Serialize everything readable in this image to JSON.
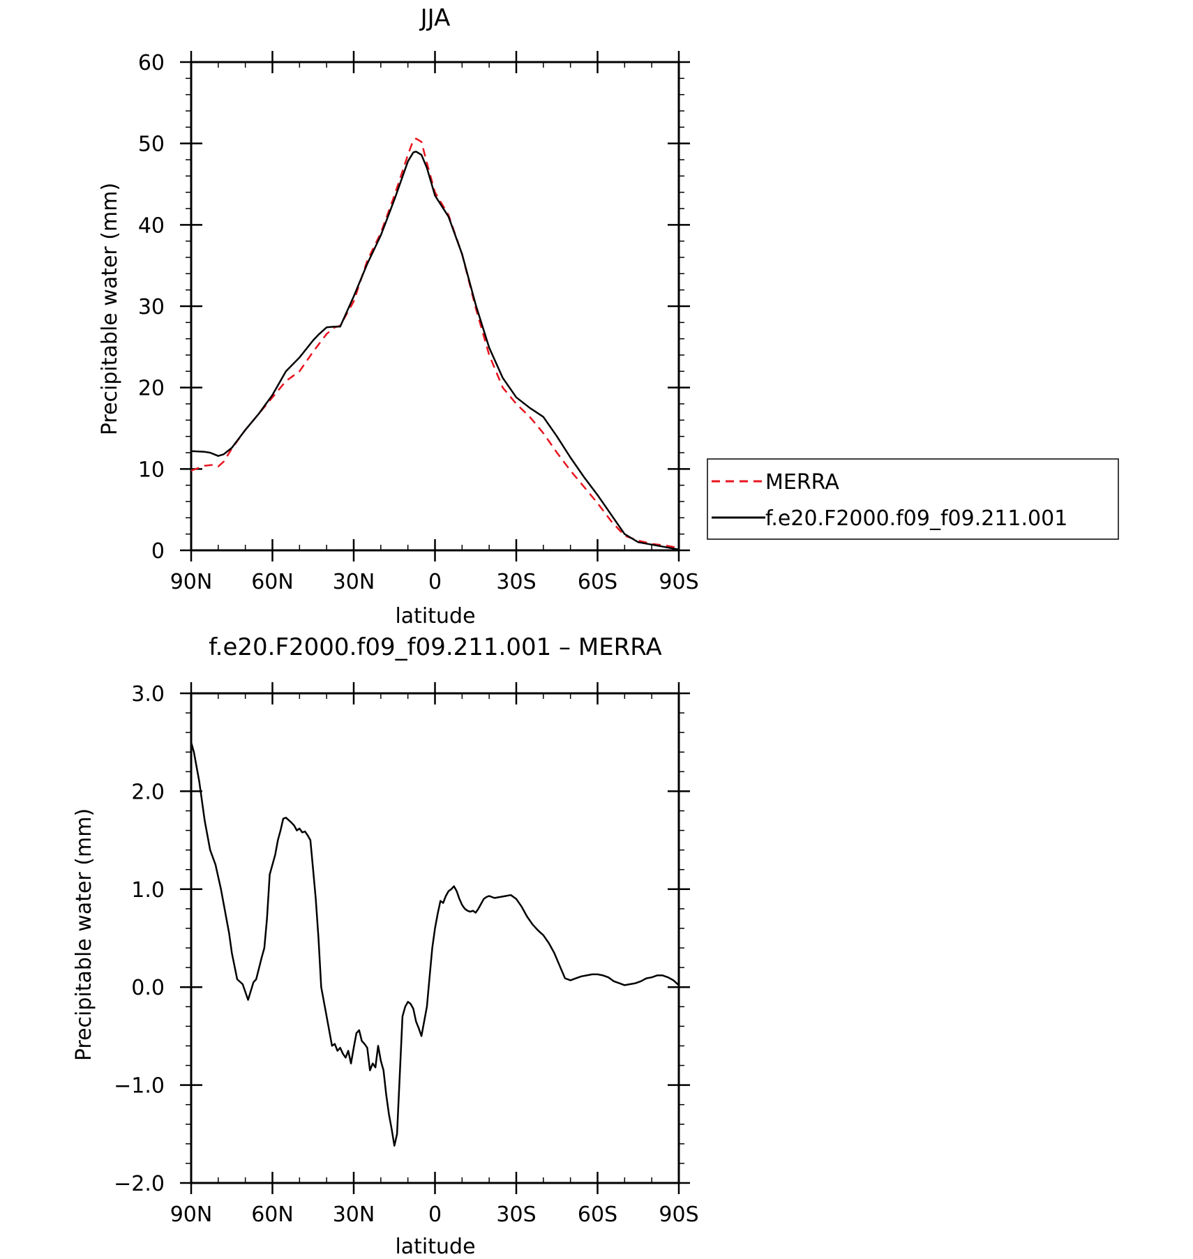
{
  "chart_data": [
    {
      "type": "line",
      "title": "JJA",
      "xlabel": "latitude",
      "ylabel": "Precipitable water (mm)",
      "xlim": [
        90,
        -90
      ],
      "ylim": [
        0,
        60
      ],
      "x_ticks": [
        {
          "value": 90,
          "label": "90N"
        },
        {
          "value": 60,
          "label": "60N"
        },
        {
          "value": 30,
          "label": "30N"
        },
        {
          "value": 0,
          "label": "0"
        },
        {
          "value": -30,
          "label": "30S"
        },
        {
          "value": -60,
          "label": "60S"
        },
        {
          "value": -90,
          "label": "90S"
        }
      ],
      "y_ticks": [
        {
          "value": 0,
          "label": "0"
        },
        {
          "value": 10,
          "label": "10"
        },
        {
          "value": 20,
          "label": "20"
        },
        {
          "value": 30,
          "label": "30"
        },
        {
          "value": 40,
          "label": "40"
        },
        {
          "value": 50,
          "label": "50"
        },
        {
          "value": 60,
          "label": "60"
        }
      ],
      "legend_position": "right",
      "series": [
        {
          "name": "MERRA",
          "color": "#e8141e",
          "dashed": true,
          "x": [
            90,
            85,
            82,
            80,
            78,
            75,
            70,
            65,
            60,
            55,
            50,
            45,
            40,
            37,
            35,
            30,
            25,
            20,
            15,
            10,
            8,
            7,
            5,
            3,
            0,
            -5,
            -10,
            -15,
            -20,
            -25,
            -30,
            -35,
            -40,
            -45,
            -50,
            -55,
            -60,
            -65,
            -70,
            -75,
            -80,
            -85,
            -90
          ],
          "y": [
            9.8,
            10.4,
            10.5,
            10.3,
            10.9,
            12.5,
            14.8,
            16.8,
            18.8,
            20.8,
            22.0,
            24.4,
            26.6,
            27.4,
            27.6,
            30.6,
            35.6,
            39.0,
            43.6,
            48.6,
            50.4,
            50.6,
            50.2,
            47.6,
            44.0,
            41.2,
            36.4,
            29.8,
            24.0,
            20.0,
            18.0,
            16.4,
            14.4,
            12.0,
            9.8,
            7.8,
            5.8,
            3.6,
            1.8,
            1.2,
            0.8,
            0.6,
            0.3
          ]
        },
        {
          "name": "f.e20.F2000.f09_f09.211.001",
          "color": "#000000",
          "dashed": false,
          "x": [
            90,
            85,
            83,
            80,
            78,
            75,
            70,
            65,
            60,
            55,
            50,
            45,
            43,
            40,
            37,
            35,
            30,
            25,
            20,
            15,
            10,
            8,
            7,
            5,
            3,
            0,
            -5,
            -10,
            -15,
            -20,
            -25,
            -30,
            -35,
            -40,
            -45,
            -50,
            -55,
            -60,
            -65,
            -70,
            -75,
            -80,
            -85,
            -90
          ],
          "y": [
            12.2,
            12.1,
            12.0,
            11.6,
            11.8,
            12.6,
            14.8,
            16.8,
            19.1,
            22.0,
            23.7,
            25.8,
            26.5,
            27.4,
            27.5,
            27.5,
            31.2,
            35.2,
            38.7,
            43.1,
            47.8,
            48.9,
            49.0,
            48.6,
            47.0,
            43.6,
            41.0,
            36.4,
            30.2,
            24.9,
            21.2,
            18.8,
            17.5,
            16.4,
            14.0,
            11.4,
            9.0,
            6.8,
            4.4,
            2.0,
            1.0,
            0.7,
            0.4,
            0.1
          ]
        }
      ]
    },
    {
      "type": "line",
      "title": "f.e20.F2000.f09_f09.211.001 – MERRA",
      "xlabel": "latitude",
      "ylabel": "Precipitable water (mm)",
      "xlim": [
        90,
        -90
      ],
      "ylim": [
        -2.0,
        3.0
      ],
      "x_ticks": [
        {
          "value": 90,
          "label": "90N"
        },
        {
          "value": 60,
          "label": "60N"
        },
        {
          "value": 30,
          "label": "30N"
        },
        {
          "value": 0,
          "label": "0"
        },
        {
          "value": -30,
          "label": "30S"
        },
        {
          "value": -60,
          "label": "60S"
        },
        {
          "value": -90,
          "label": "90S"
        }
      ],
      "y_ticks": [
        {
          "value": -2.0,
          "label": "−2.0"
        },
        {
          "value": -1.0,
          "label": "−1.0"
        },
        {
          "value": 0.0,
          "label": "0.0"
        },
        {
          "value": 1.0,
          "label": "1.0"
        },
        {
          "value": 2.0,
          "label": "2.0"
        },
        {
          "value": 3.0,
          "label": "3.0"
        }
      ],
      "series": [
        {
          "color": "#000000",
          "dashed": false,
          "x": [
            90,
            89,
            87,
            85,
            83,
            81,
            79,
            78,
            76,
            75,
            73,
            71,
            69,
            67,
            66,
            64,
            63,
            62,
            61,
            59,
            58,
            57,
            56,
            55,
            53,
            52,
            51,
            50,
            49,
            48,
            47,
            46,
            45,
            44,
            43,
            42,
            40,
            38,
            37,
            36,
            35,
            34,
            33,
            32,
            31,
            30,
            29,
            28,
            27,
            26,
            25,
            24,
            23,
            22,
            21,
            20,
            19,
            18,
            17,
            16,
            15,
            14,
            13,
            12,
            11,
            10,
            9,
            8,
            7,
            6,
            5,
            4,
            3,
            2,
            1,
            0,
            -1,
            -2,
            -3,
            -4,
            -5,
            -6,
            -7,
            -8,
            -9,
            -10,
            -11,
            -12,
            -13,
            -14,
            -15,
            -16,
            -17,
            -18,
            -19,
            -20,
            -21,
            -22,
            -24,
            -26,
            -28,
            -30,
            -32,
            -34,
            -36,
            -38,
            -40,
            -42,
            -44,
            -46,
            -48,
            -50,
            -52,
            -54,
            -56,
            -58,
            -60,
            -62,
            -64,
            -65,
            -66,
            -68,
            -70,
            -72,
            -74,
            -76,
            -78,
            -80,
            -82,
            -84,
            -86,
            -88,
            -90
          ],
          "y": [
            2.5,
            2.4,
            2.1,
            1.7,
            1.4,
            1.25,
            1.0,
            0.85,
            0.55,
            0.35,
            0.08,
            0.03,
            -0.13,
            0.05,
            0.08,
            0.3,
            0.4,
            0.7,
            1.15,
            1.35,
            1.5,
            1.6,
            1.72,
            1.73,
            1.68,
            1.65,
            1.6,
            1.62,
            1.58,
            1.59,
            1.55,
            1.5,
            1.2,
            0.9,
            0.5,
            0.0,
            -0.3,
            -0.6,
            -0.58,
            -0.65,
            -0.62,
            -0.68,
            -0.72,
            -0.65,
            -0.78,
            -0.62,
            -0.47,
            -0.44,
            -0.55,
            -0.58,
            -0.62,
            -0.85,
            -0.78,
            -0.82,
            -0.6,
            -0.75,
            -0.85,
            -1.1,
            -1.3,
            -1.45,
            -1.62,
            -1.5,
            -0.9,
            -0.3,
            -0.2,
            -0.15,
            -0.17,
            -0.22,
            -0.35,
            -0.42,
            -0.5,
            -0.35,
            -0.2,
            0.1,
            0.4,
            0.6,
            0.75,
            0.88,
            0.86,
            0.93,
            0.98,
            1.0,
            1.03,
            0.98,
            0.9,
            0.84,
            0.8,
            0.78,
            0.77,
            0.78,
            0.76,
            0.8,
            0.85,
            0.9,
            0.92,
            0.93,
            0.92,
            0.91,
            0.92,
            0.93,
            0.94,
            0.9,
            0.82,
            0.72,
            0.64,
            0.58,
            0.53,
            0.45,
            0.35,
            0.22,
            0.09,
            0.07,
            0.09,
            0.11,
            0.12,
            0.13,
            0.13,
            0.12,
            0.1,
            0.08,
            0.06,
            0.04,
            0.02,
            0.03,
            0.04,
            0.06,
            0.09,
            0.1,
            0.12,
            0.12,
            0.1,
            0.07,
            0.02
          ]
        }
      ]
    }
  ]
}
